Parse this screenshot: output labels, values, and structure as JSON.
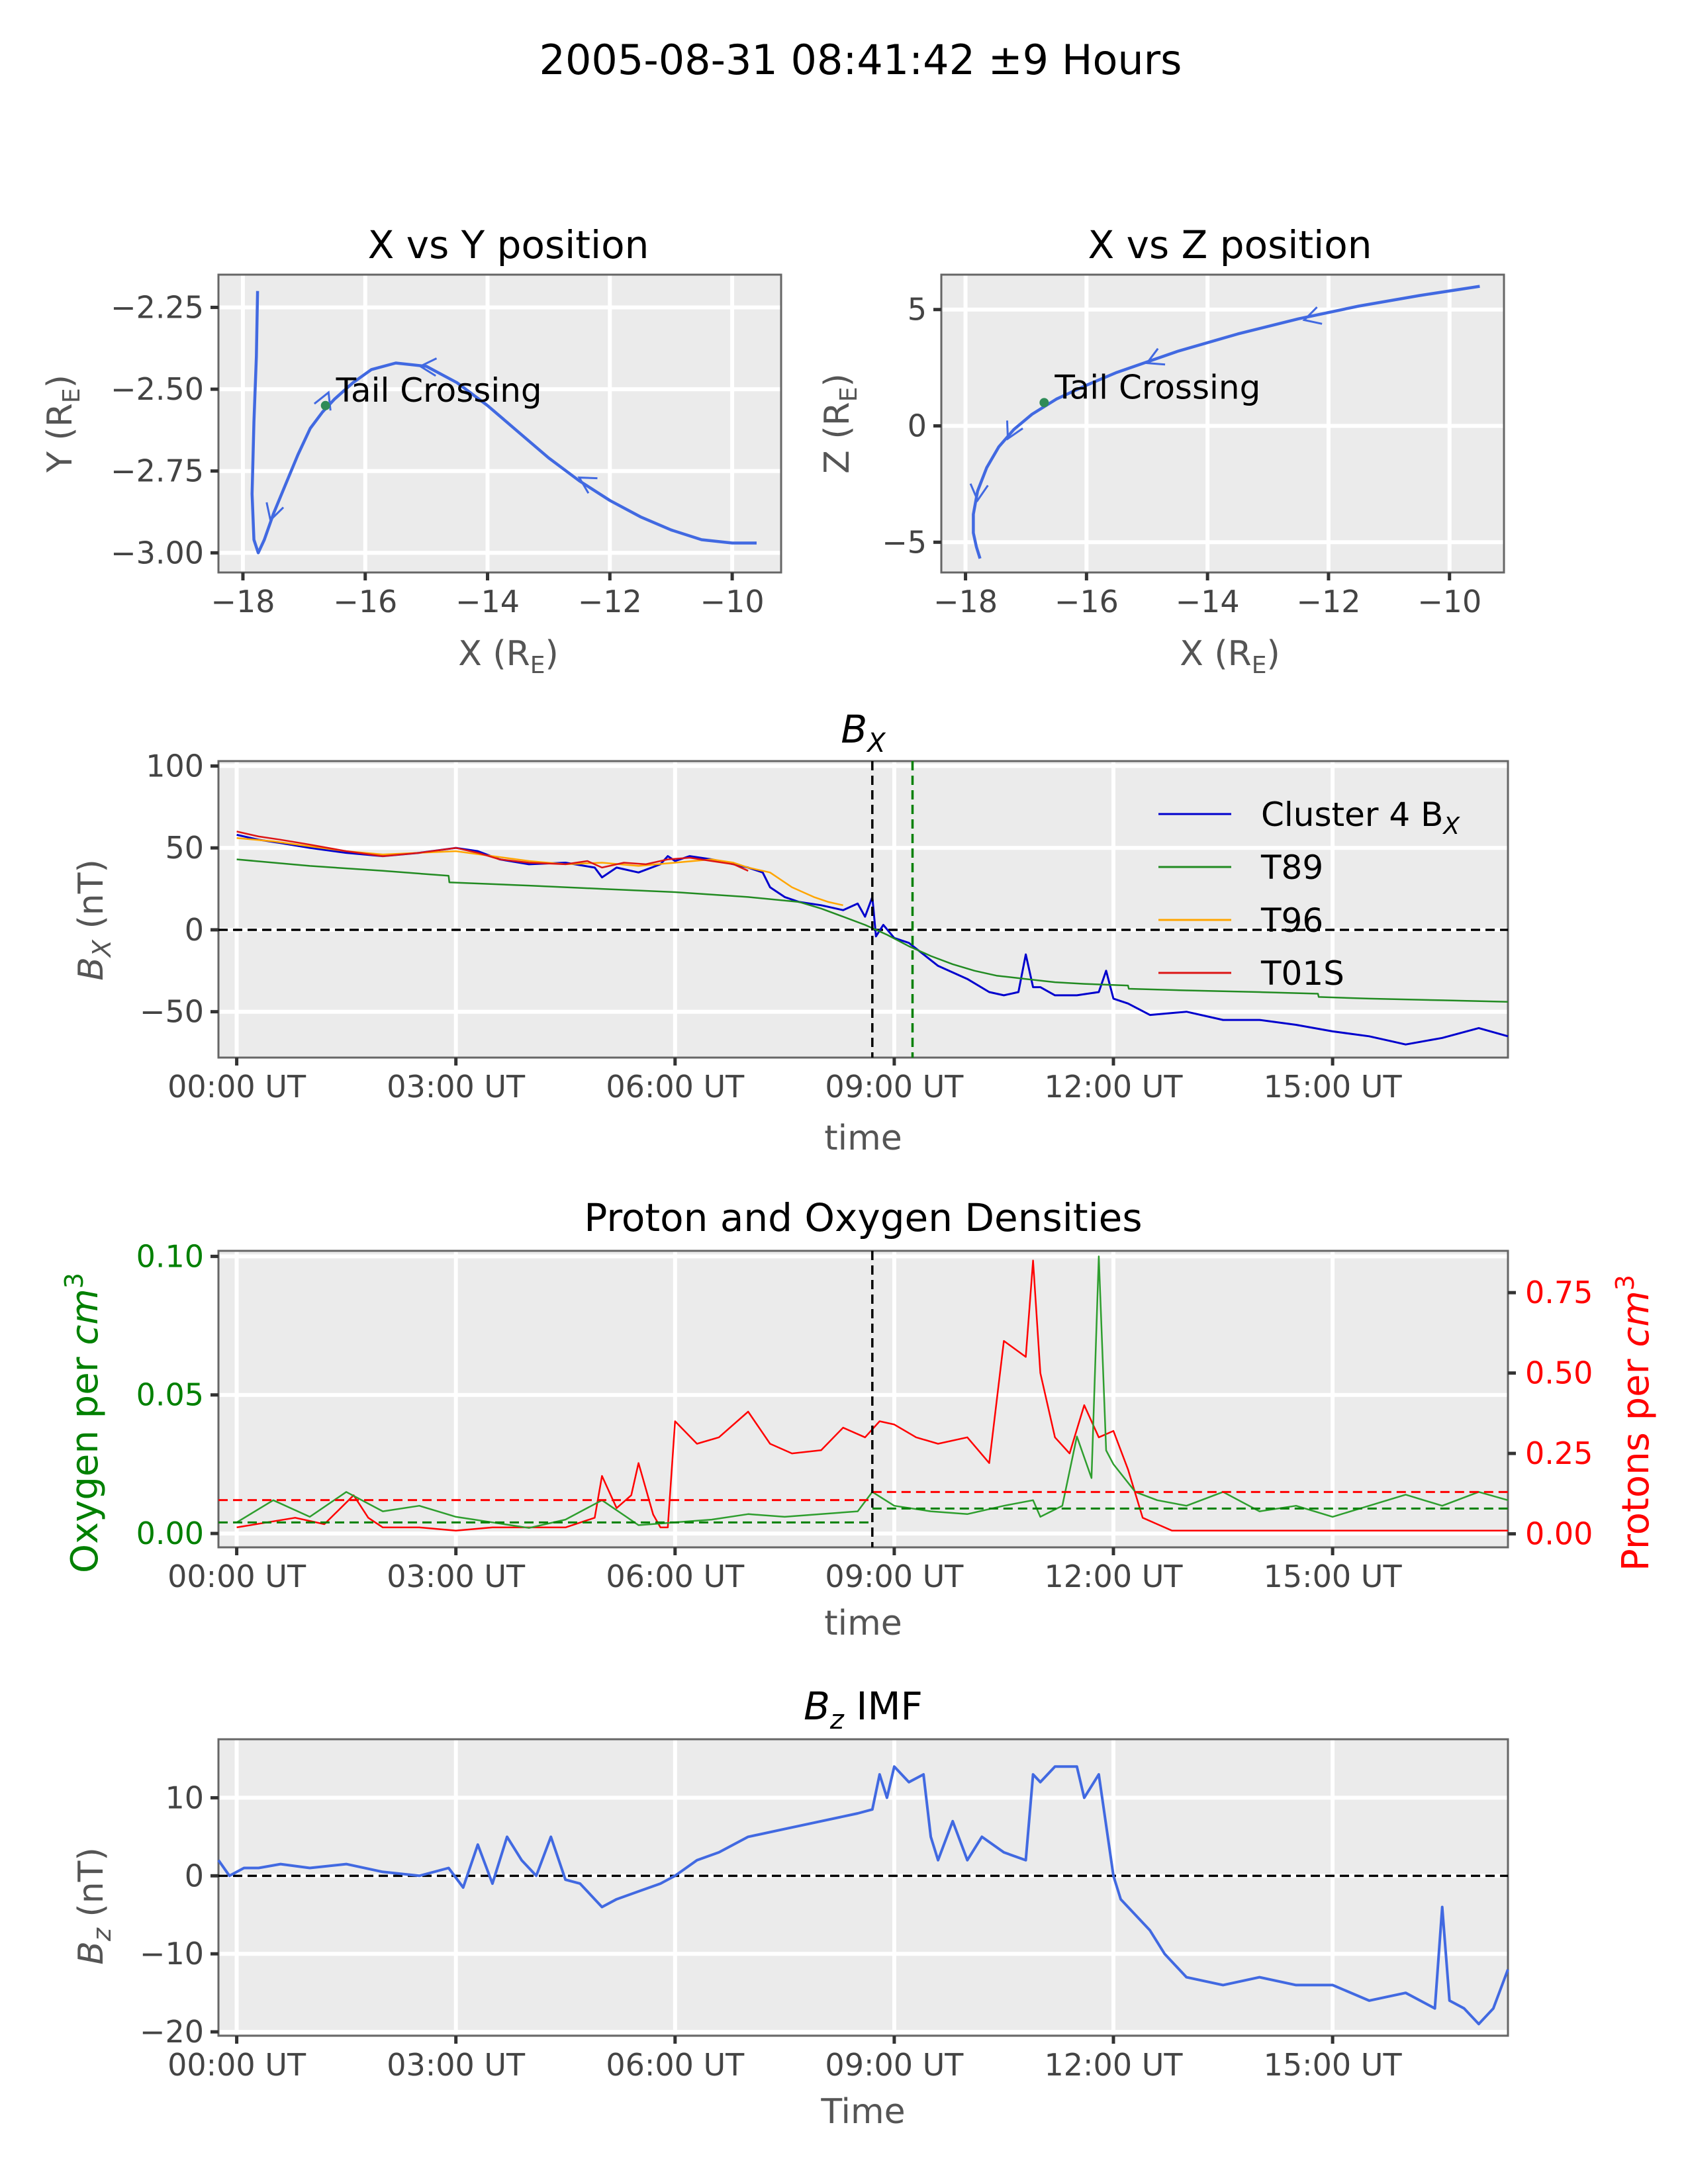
{
  "figure": {
    "title": "2005-08-31 08:41:42 ±9 Hours",
    "colors": {
      "panel_bg": "#ebebeb",
      "grid": "#ffffff",
      "orbit": "#4169e1",
      "cluster": "#0000cd",
      "t89": "#228b22",
      "t96": "#ffa500",
      "t01s": "#dc1414",
      "oxygen": "#2e9e2e",
      "protons": "#ff0000",
      "dashed_black": "#000000",
      "dashed_green": "#008000"
    }
  },
  "chart_data": [
    {
      "id": "xy",
      "type": "line",
      "title": "X vs Y position",
      "xlabel": "X (R",
      "xlabel_sub": "E",
      "xlabel_end": ")",
      "ylabel": "Y (R",
      "ylabel_sub": "E",
      "ylabel_end": ")",
      "xlim": [
        -18.4,
        -9.2
      ],
      "ylim": [
        -3.06,
        -2.15
      ],
      "xticks": [
        -18,
        -16,
        -14,
        -12,
        -10
      ],
      "xtick_labels": [
        "−18",
        "−16",
        "−14",
        "−12",
        "−10"
      ],
      "yticks": [
        -3.0,
        -2.75,
        -2.5,
        -2.25
      ],
      "ytick_labels": [
        "−3.00",
        "−2.75",
        "−2.50",
        "−2.25"
      ],
      "series": [
        {
          "x": [
            -9.6,
            -10.0,
            -10.5,
            -11.0,
            -11.5,
            -12.0,
            -12.5,
            -13.0,
            -13.5,
            -14.0,
            -14.5,
            -15.0,
            -15.5,
            -15.9,
            -16.2,
            -16.5,
            -16.7,
            -16.9,
            -17.1,
            -17.3,
            -17.5,
            -17.65,
            -17.75,
            -17.82,
            -17.85,
            -17.82,
            -17.78,
            -17.76
          ],
          "y": [
            -2.97,
            -2.97,
            -2.96,
            -2.93,
            -2.89,
            -2.84,
            -2.78,
            -2.71,
            -2.63,
            -2.55,
            -2.48,
            -2.43,
            -2.42,
            -2.44,
            -2.48,
            -2.53,
            -2.57,
            -2.62,
            -2.7,
            -2.79,
            -2.88,
            -2.96,
            -3.0,
            -2.96,
            -2.82,
            -2.6,
            -2.4,
            -2.2
          ]
        }
      ],
      "marker": {
        "x": -16.65,
        "y": -2.55,
        "label": "Tail Crossing"
      },
      "arrows": [
        {
          "x": -15.1,
          "y": -2.43,
          "dir": [
            -1,
            0.05
          ]
        },
        {
          "x": -12.5,
          "y": -2.77,
          "dir": [
            -1,
            0.6
          ]
        },
        {
          "x": -17.55,
          "y": -2.9,
          "dir": [
            -0.3,
            -1
          ]
        },
        {
          "x": -16.6,
          "y": -2.51,
          "dir": [
            0.25,
            0.6
          ]
        }
      ]
    },
    {
      "id": "xz",
      "type": "line",
      "title": "X vs Z position",
      "xlabel": "X (R",
      "xlabel_sub": "E",
      "xlabel_end": ")",
      "ylabel": "Z (R",
      "ylabel_sub": "E",
      "ylabel_end": ")",
      "xlim": [
        -18.4,
        -9.1
      ],
      "ylim": [
        -6.3,
        6.5
      ],
      "xticks": [
        -18,
        -16,
        -14,
        -12,
        -10
      ],
      "xtick_labels": [
        "−18",
        "−16",
        "−14",
        "−12",
        "−10"
      ],
      "yticks": [
        -5,
        0,
        5
      ],
      "ytick_labels": [
        "−5",
        "0",
        "5"
      ],
      "series": [
        {
          "x": [
            -9.5,
            -10.5,
            -11.5,
            -12.5,
            -13.5,
            -14.5,
            -15.5,
            -16.0,
            -16.5,
            -16.9,
            -17.2,
            -17.45,
            -17.65,
            -17.8,
            -17.87,
            -17.87,
            -17.82,
            -17.76
          ],
          "y": [
            6.0,
            5.6,
            5.15,
            4.6,
            3.95,
            3.2,
            2.3,
            1.75,
            1.15,
            0.5,
            -0.15,
            -0.9,
            -1.8,
            -2.8,
            -3.8,
            -4.6,
            -5.2,
            -5.7
          ]
        }
      ],
      "marker": {
        "x": -16.7,
        "y": 1.0,
        "label": "Tail Crossing"
      },
      "arrows": [
        {
          "x": -12.4,
          "y": 4.55,
          "dir": [
            -1,
            -0.3
          ]
        },
        {
          "x": -15.0,
          "y": 2.7,
          "dir": [
            -1,
            -0.45
          ]
        },
        {
          "x": -17.3,
          "y": -0.55,
          "dir": [
            -0.5,
            -1
          ]
        },
        {
          "x": -17.8,
          "y": -3.2,
          "dir": [
            -0.1,
            -1
          ]
        }
      ]
    },
    {
      "id": "bx",
      "type": "line",
      "title": "B",
      "title_sub": "X",
      "ylabel": "B",
      "ylabel_sub": "X",
      "ylabel_end": " (nT)",
      "xlabel": "time",
      "xlim": [
        -0.25,
        17.4
      ],
      "ylim": [
        -78,
        103
      ],
      "yticks": [
        -50,
        0,
        50,
        100
      ],
      "ytick_labels": [
        "−50",
        "0",
        "50",
        "100"
      ],
      "xticks": [
        0,
        3,
        6,
        9,
        12,
        15
      ],
      "xtick_labels": [
        "00:00 UT",
        "03:00 UT",
        "06:00 UT",
        "09:00 UT",
        "12:00 UT",
        "15:00 UT"
      ],
      "vlines": [
        {
          "x": 8.7,
          "color": "dashed_black"
        },
        {
          "x": 9.25,
          "color": "dashed_green"
        }
      ],
      "hline": 0,
      "series": [
        {
          "name": "Cluster 4 B",
          "name_sub": "X",
          "color_key": "cluster",
          "x": [
            0,
            0.3,
            0.6,
            1.0,
            1.5,
            2.0,
            2.5,
            3.0,
            3.3,
            3.6,
            4.0,
            4.5,
            4.9,
            5.0,
            5.2,
            5.5,
            5.8,
            5.9,
            6.0,
            6.2,
            6.5,
            6.8,
            7.0,
            7.2,
            7.3,
            7.5,
            7.7,
            8.0,
            8.3,
            8.5,
            8.6,
            8.7,
            8.75,
            8.85,
            9.0,
            9.2,
            9.4,
            9.6,
            10.0,
            10.3,
            10.5,
            10.7,
            10.8,
            10.9,
            11.0,
            11.2,
            11.5,
            11.8,
            11.9,
            12.0,
            12.2,
            12.5,
            13.0,
            13.5,
            14.0,
            14.5,
            15.0,
            15.5,
            15.8,
            16.0,
            16.5,
            17.0,
            17.4
          ],
          "y": [
            58,
            55,
            53,
            50,
            47,
            45,
            47,
            50,
            48,
            43,
            40,
            41,
            38,
            32,
            38,
            35,
            40,
            45,
            42,
            45,
            43,
            40,
            38,
            35,
            26,
            20,
            17,
            15,
            12,
            16,
            8,
            20,
            -4,
            3,
            -5,
            -8,
            -15,
            -22,
            -30,
            -38,
            -40,
            -38,
            -15,
            -35,
            -35,
            -40,
            -40,
            -38,
            -25,
            -42,
            -45,
            -52,
            -50,
            -55,
            -55,
            -58,
            -62,
            -65,
            -68,
            -70,
            -66,
            -60,
            -65
          ]
        },
        {
          "name": "T89",
          "color_key": "t89",
          "x": [
            0,
            1,
            2,
            2.9,
            2.91,
            4,
            5,
            6,
            7,
            7.7,
            8.0,
            8.3,
            8.6,
            8.9,
            9.2,
            9.5,
            9.8,
            10.1,
            10.4,
            10.8,
            11.2,
            11.6,
            12.2,
            12.21,
            13,
            14,
            14.8,
            14.81,
            15.5,
            16.5,
            17.4
          ],
          "y": [
            43,
            39,
            36,
            33,
            29,
            27,
            25,
            23,
            20,
            17,
            13,
            8,
            3,
            -3,
            -10,
            -16,
            -21,
            -25,
            -28,
            -30,
            -32,
            -33,
            -34,
            -36,
            -37,
            -38,
            -39,
            -41,
            -42,
            -43,
            -44
          ]
        },
        {
          "name": "T96",
          "color_key": "t96",
          "x": [
            0,
            0.5,
            1,
            1.5,
            2,
            2.5,
            3,
            3.5,
            4,
            4.5,
            5,
            5.5,
            6,
            6.5,
            6.8,
            7.0,
            7.3,
            7.6,
            7.9,
            8.1,
            8.3
          ],
          "y": [
            56,
            54,
            51,
            48,
            46,
            47,
            48,
            45,
            42,
            40,
            41,
            39,
            41,
            43,
            41,
            38,
            35,
            26,
            20,
            17,
            15
          ]
        },
        {
          "name": "T01S",
          "color_key": "t01s",
          "x": [
            0,
            0.3,
            0.6,
            1.0,
            1.5,
            2.0,
            2.5,
            3.0,
            3.3,
            3.6,
            4.0,
            4.5,
            4.8,
            5.0,
            5.3,
            5.6,
            5.9,
            6.2,
            6.5,
            6.8,
            7.0
          ],
          "y": [
            60,
            57,
            55,
            52,
            48,
            45,
            47,
            50,
            47,
            43,
            41,
            40,
            42,
            38,
            41,
            40,
            43,
            44,
            42,
            40,
            36
          ]
        }
      ]
    },
    {
      "id": "dens",
      "type": "line",
      "title": "Proton and Oxygen Densities",
      "ylabel_left": "Oxygen per ",
      "ylabel_left_unit": "cm",
      "ylabel_left_sup": "3",
      "ylabel_right": "Protons per ",
      "ylabel_right_unit": "cm",
      "ylabel_right_sup": "3",
      "xlabel": "time",
      "xlim": [
        -0.25,
        17.4
      ],
      "ylim_left": [
        -0.005,
        0.102
      ],
      "ylim_right": [
        -0.042,
        0.88
      ],
      "yticks_left": [
        0,
        0.05,
        0.1
      ],
      "ytick_labels_left": [
        "0.00",
        "0.05",
        "0.10"
      ],
      "yticks_right": [
        0,
        0.25,
        0.5,
        0.75
      ],
      "ytick_labels_right": [
        "0.00",
        "0.25",
        "0.50",
        "0.75"
      ],
      "xticks": [
        0,
        3,
        6,
        9,
        12,
        15
      ],
      "xtick_labels": [
        "00:00 UT",
        "03:00 UT",
        "06:00 UT",
        "09:00 UT",
        "12:00 UT",
        "15:00 UT"
      ],
      "vline": 8.7,
      "hlines": [
        {
          "axis": "right",
          "y": 0.105,
          "x0": -0.25,
          "x1": 8.7,
          "color": "protons"
        },
        {
          "axis": "right",
          "y": 0.13,
          "x0": 8.7,
          "x1": 17.4,
          "color": "protons"
        },
        {
          "axis": "left",
          "y": 0.004,
          "x0": -0.25,
          "x1": 8.7,
          "color": "dashed_green"
        },
        {
          "axis": "left",
          "y": 0.009,
          "x0": 8.7,
          "x1": 17.4,
          "color": "dashed_green"
        }
      ],
      "series": [
        {
          "name": "Protons",
          "axis": "right",
          "color_key": "protons",
          "x": [
            0,
            0.8,
            1.2,
            1.6,
            1.8,
            2.0,
            2.5,
            3.0,
            3.5,
            4.0,
            4.5,
            4.9,
            5.0,
            5.2,
            5.4,
            5.5,
            5.7,
            5.8,
            5.9,
            6.0,
            6.3,
            6.6,
            7.0,
            7.3,
            7.6,
            8.0,
            8.3,
            8.6,
            8.8,
            9.0,
            9.3,
            9.6,
            10.0,
            10.3,
            10.5,
            10.8,
            10.9,
            11.0,
            11.2,
            11.4,
            11.6,
            11.8,
            12.0,
            12.2,
            12.4,
            12.6,
            12.8,
            13.0,
            14.0,
            15.0,
            16.0,
            17.0,
            17.4
          ],
          "y": [
            0.02,
            0.05,
            0.03,
            0.12,
            0.05,
            0.02,
            0.02,
            0.01,
            0.02,
            0.02,
            0.02,
            0.05,
            0.18,
            0.08,
            0.12,
            0.22,
            0.06,
            0.02,
            0.02,
            0.35,
            0.28,
            0.3,
            0.38,
            0.28,
            0.25,
            0.26,
            0.33,
            0.3,
            0.35,
            0.34,
            0.3,
            0.28,
            0.3,
            0.22,
            0.6,
            0.55,
            0.85,
            0.5,
            0.3,
            0.25,
            0.4,
            0.3,
            0.32,
            0.2,
            0.05,
            0.03,
            0.01,
            0.01,
            0.01,
            0.01,
            0.01,
            0.01,
            0.01
          ]
        },
        {
          "name": "Oxygen",
          "axis": "left",
          "color_key": "oxygen",
          "x": [
            0,
            0.5,
            1.0,
            1.5,
            2.0,
            2.5,
            3.0,
            3.5,
            4.0,
            4.5,
            5.0,
            5.5,
            6.0,
            6.5,
            7.0,
            7.5,
            8.0,
            8.5,
            8.7,
            9.0,
            9.5,
            10.0,
            10.5,
            10.9,
            11.0,
            11.3,
            11.5,
            11.7,
            11.8,
            11.9,
            12.0,
            12.3,
            12.6,
            13.0,
            13.5,
            14.0,
            14.5,
            15.0,
            15.5,
            16.0,
            16.5,
            17.0,
            17.4
          ],
          "y": [
            0.004,
            0.012,
            0.006,
            0.015,
            0.008,
            0.01,
            0.006,
            0.004,
            0.002,
            0.005,
            0.012,
            0.003,
            0.004,
            0.005,
            0.007,
            0.006,
            0.007,
            0.008,
            0.015,
            0.01,
            0.008,
            0.007,
            0.01,
            0.012,
            0.006,
            0.01,
            0.035,
            0.02,
            0.1,
            0.03,
            0.025,
            0.015,
            0.012,
            0.01,
            0.015,
            0.008,
            0.01,
            0.006,
            0.01,
            0.014,
            0.01,
            0.015,
            0.012
          ]
        }
      ]
    },
    {
      "id": "bz",
      "type": "line",
      "title": "B",
      "title_sub": "z",
      "title_end": " IMF",
      "ylabel": "B",
      "ylabel_sub": "z",
      "ylabel_end": " (nT)",
      "xlabel": "Time",
      "xlim": [
        -0.25,
        17.4
      ],
      "ylim": [
        -20.5,
        17.5
      ],
      "yticks": [
        -20,
        -10,
        0,
        10
      ],
      "ytick_labels": [
        "−20",
        "−10",
        "0",
        "10"
      ],
      "xticks": [
        0,
        3,
        6,
        9,
        12,
        15
      ],
      "xtick_labels": [
        "00:00 UT",
        "03:00 UT",
        "06:00 UT",
        "09:00 UT",
        "12:00 UT",
        "15:00 UT"
      ],
      "hline": 0,
      "series": [
        {
          "name": "Bz",
          "color_key": "orbit",
          "x": [
            -0.25,
            -0.1,
            0.1,
            0.3,
            0.6,
            1.0,
            1.5,
            2.0,
            2.5,
            2.9,
            3.1,
            3.3,
            3.5,
            3.7,
            3.9,
            4.1,
            4.3,
            4.5,
            4.7,
            4.9,
            5.0,
            5.2,
            5.5,
            5.8,
            6.0,
            6.3,
            6.6,
            7.0,
            7.5,
            8.0,
            8.5,
            8.7,
            8.8,
            8.9,
            9.0,
            9.2,
            9.4,
            9.5,
            9.6,
            9.8,
            10.0,
            10.2,
            10.5,
            10.8,
            10.9,
            11.0,
            11.2,
            11.5,
            11.6,
            11.8,
            12.0,
            12.1,
            12.3,
            12.5,
            12.7,
            13.0,
            13.5,
            14.0,
            14.5,
            15.0,
            15.5,
            16.0,
            16.4,
            16.5,
            16.6,
            16.8,
            17.0,
            17.2,
            17.4
          ],
          "y": [
            2,
            0,
            1,
            1,
            1.5,
            1,
            1.5,
            0.5,
            0,
            1,
            -1.5,
            4,
            -1,
            5,
            2,
            0,
            5,
            -0.5,
            -1,
            -3,
            -4,
            -3,
            -2,
            -1,
            0,
            2,
            3,
            5,
            6,
            7,
            8,
            8.5,
            13,
            10,
            14,
            12,
            13,
            5,
            2,
            7,
            2,
            5,
            3,
            2,
            13,
            12,
            14,
            14,
            10,
            13,
            0,
            -3,
            -5,
            -7,
            -10,
            -13,
            -14,
            -13,
            -14,
            -14,
            -16,
            -15,
            -17,
            -4,
            -16,
            -17,
            -19,
            -17,
            -12
          ]
        }
      ]
    }
  ]
}
